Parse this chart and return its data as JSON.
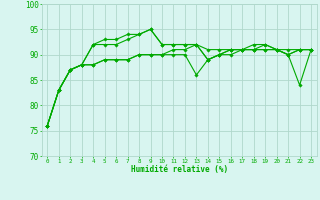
{
  "xlabel": "Humidité relative (%)",
  "ylabel": "",
  "ylim": [
    70,
    100
  ],
  "xlim": [
    -0.5,
    23.5
  ],
  "yticks": [
    70,
    75,
    80,
    85,
    90,
    95,
    100
  ],
  "xticks": [
    0,
    1,
    2,
    3,
    4,
    5,
    6,
    7,
    8,
    9,
    10,
    11,
    12,
    13,
    14,
    15,
    16,
    17,
    18,
    19,
    20,
    21,
    22,
    23
  ],
  "bg_color": "#d8f5f0",
  "grid_color": "#b0d8cc",
  "line_color": "#00aa00",
  "series": [
    [
      76,
      83,
      87,
      88,
      92,
      92,
      92,
      93,
      94,
      95,
      92,
      92,
      92,
      92,
      89,
      90,
      91,
      91,
      92,
      92,
      91,
      90,
      91,
      91
    ],
    [
      76,
      83,
      87,
      88,
      88,
      89,
      89,
      89,
      90,
      90,
      90,
      90,
      90,
      86,
      89,
      90,
      90,
      91,
      91,
      91,
      91,
      90,
      84,
      91
    ],
    [
      76,
      83,
      87,
      88,
      88,
      89,
      89,
      89,
      90,
      90,
      90,
      91,
      91,
      92,
      91,
      91,
      91,
      91,
      91,
      91,
      91,
      91,
      91,
      91
    ],
    [
      76,
      83,
      87,
      88,
      92,
      93,
      93,
      94,
      94,
      95,
      92,
      92,
      92,
      92,
      89,
      90,
      91,
      91,
      91,
      92,
      91,
      90,
      91,
      91
    ]
  ],
  "figsize": [
    3.2,
    2.0
  ],
  "dpi": 100
}
